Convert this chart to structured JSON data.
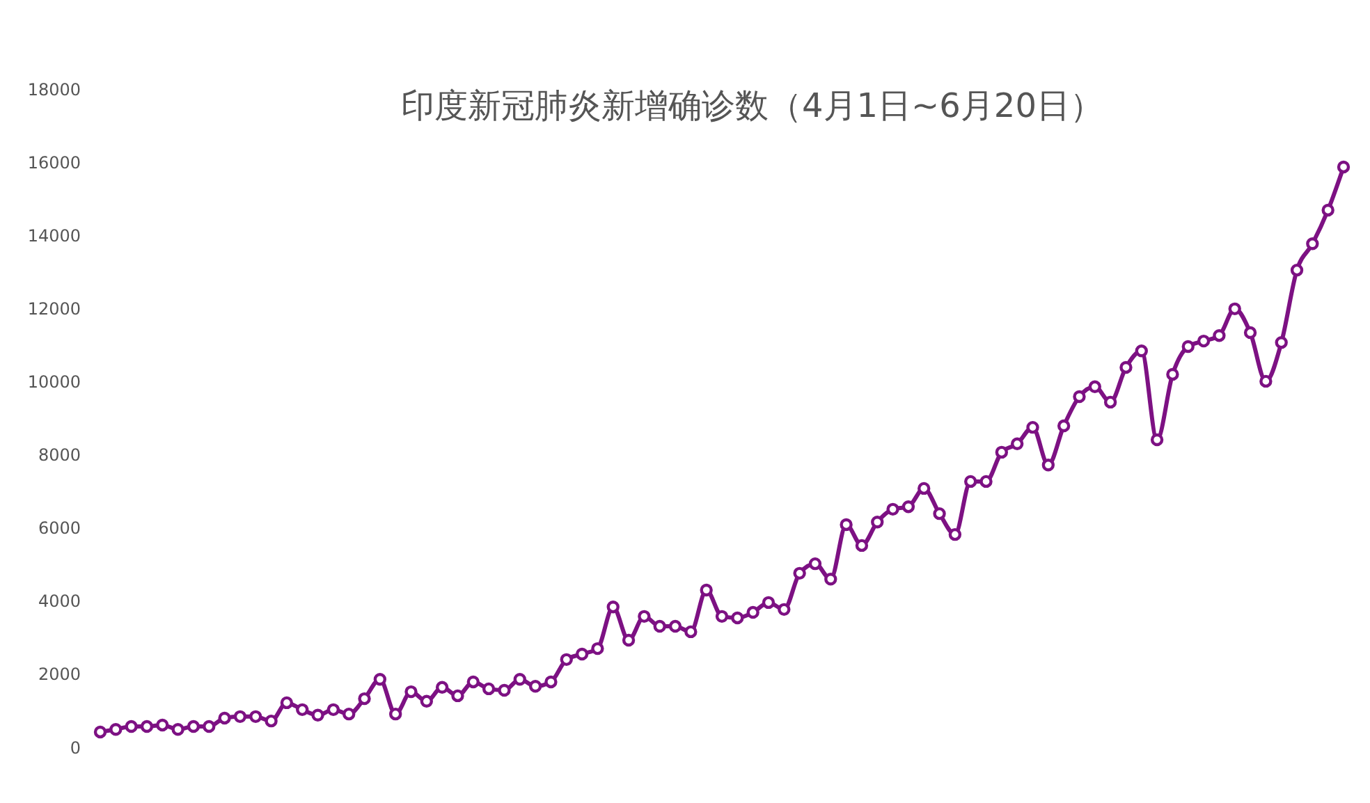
{
  "chart_data": {
    "type": "line",
    "title": "印度新冠肺炎新增确诊数（4月1日~6月20日）",
    "categories": [
      null,
      null,
      null,
      null,
      null,
      null,
      null,
      null,
      null,
      null,
      null,
      null,
      null,
      null,
      null,
      null,
      null,
      null,
      null,
      null,
      null,
      null,
      null,
      null,
      null,
      null,
      null,
      null,
      null,
      null,
      null,
      null,
      null,
      null,
      null,
      null,
      null,
      null,
      null,
      null,
      null,
      null,
      null,
      null,
      null,
      null,
      null,
      null,
      null,
      null,
      null,
      null,
      null,
      null,
      null,
      null,
      null,
      null,
      null,
      null,
      null,
      null,
      null,
      null,
      null,
      null,
      null,
      null,
      null,
      null,
      null,
      null,
      null,
      null,
      null,
      null,
      null,
      null,
      null,
      null,
      null
    ],
    "series": [
      {
        "color": "#7d1183",
        "values": [
          420,
          490,
          570,
          570,
          610,
          490,
          570,
          570,
          800,
          840,
          840,
          720,
          1220,
          1030,
          880,
          1030,
          910,
          1330,
          1860,
          910,
          1520,
          1260,
          1640,
          1410,
          1790,
          1600,
          1560,
          1860,
          1670,
          1790,
          2400,
          2550,
          2700,
          3840,
          2930,
          3580,
          3310,
          3310,
          3160,
          4300,
          3580,
          3540,
          3690,
          3960,
          3770,
          4760,
          5020,
          4600,
          6090,
          5520,
          6160,
          6510,
          6580,
          7080,
          6390,
          5820,
          7270,
          7270,
          8070,
          8300,
          8750,
          7720,
          8790,
          9590,
          9860,
          9440,
          10390,
          10840,
          8410,
          10200,
          10960,
          11110,
          11260,
          11990,
          11340,
          10010,
          11070,
          13050,
          13770,
          14690,
          15870
        ]
      }
    ],
    "ylim": [
      0,
      18000
    ],
    "yticks": [
      0,
      2000,
      4000,
      6000,
      8000,
      10000,
      12000,
      14000,
      16000,
      18000
    ],
    "grid": false,
    "legend": false,
    "marker": "circle",
    "line_style": "solid",
    "tick_labels": "y"
  }
}
